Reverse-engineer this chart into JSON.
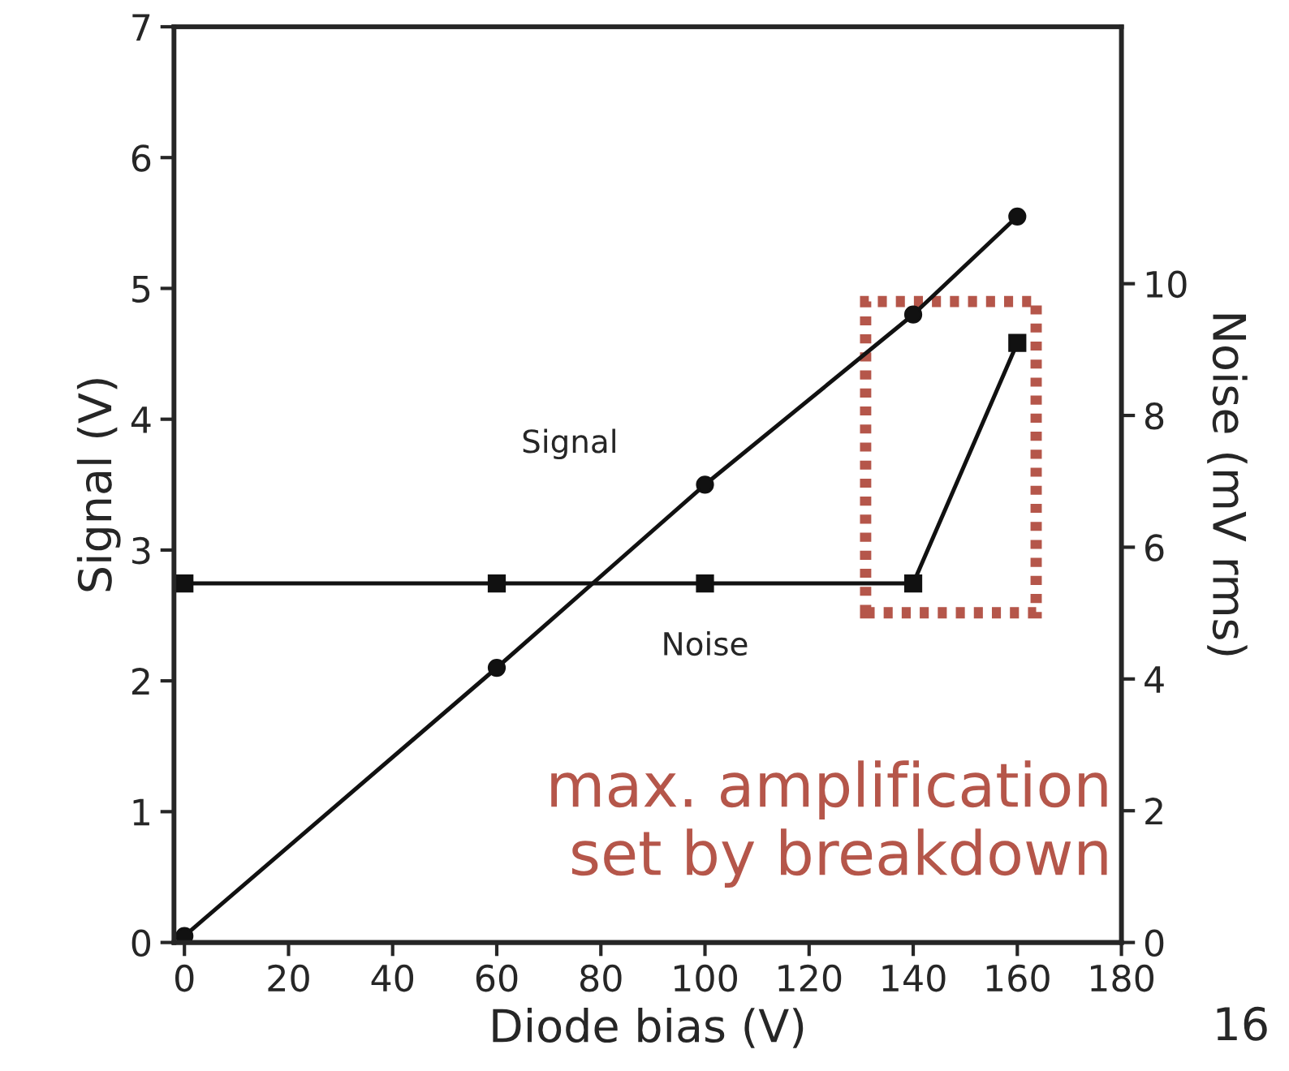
{
  "chart_data": {
    "type": "line",
    "xlabel": "Diode bias (V)",
    "ylabel": "Signal (V)",
    "y2label": "Noise (mV rms)",
    "series": [
      {
        "name": "Signal",
        "color": "#111111",
        "marker": "circle",
        "x": [
          0,
          60,
          100,
          140,
          160
        ],
        "values": [
          0.05,
          2.1,
          3.5,
          4.8,
          5.55
        ]
      },
      {
        "name": "Noise",
        "color": "#111111",
        "marker": "square",
        "axis": "y2",
        "x": [
          0,
          60,
          100,
          140,
          160
        ],
        "values": [
          5.45,
          5.45,
          5.45,
          5.45,
          9.1
        ]
      }
    ],
    "xlim": [
      -2,
      180
    ],
    "xticks": [
      0,
      20,
      40,
      60,
      80,
      100,
      120,
      140,
      160,
      180
    ],
    "ylim": [
      0,
      7
    ],
    "yticks": [
      0,
      1,
      2,
      3,
      4,
      5,
      6,
      7
    ],
    "y2lim": [
      0,
      13.9
    ],
    "y2ticks": [
      0,
      2,
      4,
      6,
      8,
      10
    ],
    "grid": false,
    "legend": false,
    "line_style": "solid",
    "annotations": [
      "max. amplification\nset by breakdown",
      "16"
    ]
  }
}
